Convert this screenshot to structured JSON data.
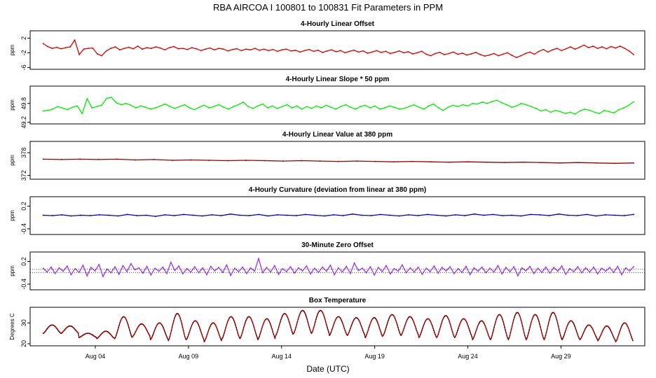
{
  "header": {
    "title": "RBA   AIRCOA I   100801 to 100831   Fit Parameters in PPM"
  },
  "x_axis": {
    "label": "Date (UTC)",
    "tick_labels": [
      "Aug 04",
      "Aug 09",
      "Aug 14",
      "Aug 19",
      "Aug 24",
      "Aug 29"
    ],
    "tick_days": [
      4,
      9,
      14,
      19,
      24,
      29
    ],
    "range_days": [
      0.5,
      33.5
    ]
  },
  "colors": {
    "offset": "#dd0000",
    "slope": "#00ee00",
    "value": "#990000",
    "curvature": "#0000cc",
    "zero": "#9933ee",
    "temperature": "#8b0000"
  },
  "chart_data": [
    {
      "type": "line",
      "title": "4-Hourly Linear Offset",
      "ylabel": "ppm",
      "yticks": [
        "2",
        "-2",
        "-6"
      ],
      "ylim": [
        -6.5,
        4
      ],
      "x_range": [
        1.2,
        32.9
      ],
      "color": "#dd0000",
      "series": [
        {
          "values": [
            0.5,
            -0.3,
            -0.8,
            -0.5,
            -0.9,
            -0.6,
            -0.4,
            1.5,
            -2.5,
            -1.0,
            -0.8,
            -0.7,
            -2.3,
            -2.8,
            -1.5,
            -0.8,
            -0.4,
            -1.2,
            -0.8,
            -0.5,
            -0.9,
            -0.2,
            -1.0,
            -0.6,
            -0.8,
            -0.4,
            -0.7,
            -1.2,
            -0.6,
            -0.3,
            -0.9,
            -0.8,
            -1.1,
            -0.6,
            -0.9,
            -1.4,
            -1.0,
            -0.7,
            -1.2,
            -0.8,
            -1.0,
            -1.5,
            -1.1,
            -0.9,
            -1.4,
            -1.0,
            -1.2,
            -0.8,
            -1.3,
            -1.0,
            -1.4,
            -1.1,
            -1.6,
            -1.2,
            -1.0,
            -1.5,
            -1.3,
            -1.8,
            -1.4,
            -1.1,
            -1.6,
            -1.3,
            -1.9,
            -1.5,
            -1.2,
            -1.7,
            -1.4,
            -2.0,
            -1.6,
            -1.3,
            -1.8,
            -1.5,
            -2.1,
            -1.8,
            -1.4,
            -1.9,
            -1.6,
            -2.2,
            -1.9,
            -1.5,
            -2.0,
            -1.7,
            -2.3,
            -2.0,
            -1.6,
            -2.4,
            -2.8,
            -2.2,
            -1.9,
            -2.5,
            -2.2,
            -1.8,
            -2.4,
            -2.1,
            -2.6,
            -2.3,
            -1.9,
            -2.5,
            -2.9,
            -2.6,
            -2.2,
            -2.8,
            -2.4,
            -2.0,
            -2.7,
            -3.3,
            -2.8,
            -2.2,
            -1.8,
            -2.4,
            -1.6,
            -1.1,
            -1.8,
            -1.2,
            -0.8,
            -1.4,
            -0.9,
            -0.4,
            -1.0,
            -0.5,
            0.1,
            -0.6,
            -0.2,
            -0.8,
            -0.4,
            -0.9,
            -0.3,
            -0.7,
            -0.2,
            -0.8,
            -1.5,
            -2.5
          ]
        }
      ]
    },
    {
      "type": "line",
      "title": "4-Hourly Linear Slope * 50 ppm",
      "ylabel": "ppm",
      "yticks": [
        "49.8",
        "49.2"
      ],
      "ylim": [
        49.15,
        50.35
      ],
      "x_range": [
        1.2,
        32.9
      ],
      "color": "#00ee00",
      "series": [
        {
          "values": [
            49.56,
            49.58,
            49.62,
            49.7,
            49.65,
            49.6,
            49.68,
            49.72,
            49.48,
            49.95,
            49.66,
            49.7,
            49.74,
            49.96,
            49.99,
            49.82,
            49.76,
            49.8,
            49.74,
            49.66,
            49.72,
            49.68,
            49.62,
            49.66,
            49.72,
            49.78,
            49.7,
            49.64,
            49.7,
            49.76,
            49.66,
            49.6,
            49.68,
            49.74,
            49.66,
            49.7,
            49.76,
            49.68,
            49.62,
            49.7,
            49.76,
            49.84,
            49.7,
            49.64,
            49.72,
            49.78,
            49.66,
            49.72,
            49.64,
            49.7,
            49.76,
            49.66,
            49.72,
            49.62,
            49.7,
            49.64,
            49.72,
            49.66,
            49.74,
            49.68,
            49.62,
            49.7,
            49.76,
            49.68,
            49.62,
            49.7,
            49.74,
            49.66,
            49.72,
            49.62,
            49.66,
            49.72,
            49.68,
            49.62,
            49.64,
            49.7,
            49.76,
            49.68,
            49.62,
            49.72,
            49.78,
            49.66,
            49.58,
            49.68,
            49.74,
            49.7,
            49.76,
            49.72,
            49.8,
            49.78,
            49.84,
            49.8,
            49.86,
            49.9,
            49.82,
            49.76,
            49.68,
            49.72,
            49.8,
            49.76,
            49.7,
            49.64,
            49.56,
            49.6,
            49.52,
            49.58,
            49.54,
            49.48,
            49.52,
            49.46,
            49.56,
            49.62,
            49.58,
            49.52,
            49.48,
            49.58,
            49.54,
            49.5,
            49.6,
            49.66,
            49.74,
            49.85
          ]
        }
      ]
    },
    {
      "type": "line",
      "title": "4-Hourly Linear Value at 380 ppm",
      "ylabel": "ppm",
      "yticks": [
        "378",
        "372"
      ],
      "ylim": [
        371,
        381
      ],
      "x_range": [
        1.2,
        32.9
      ],
      "color": "#990000",
      "series": [
        {
          "values": [
            376.3,
            376.2,
            376.3,
            376.2,
            376.3,
            376.1,
            376.2,
            376.0,
            376.1,
            376.0,
            375.9,
            376.0,
            375.9,
            375.8,
            375.9,
            375.8,
            375.7,
            375.8,
            375.7,
            375.6,
            375.7,
            375.6,
            375.5,
            375.6,
            375.5,
            375.4,
            375.5,
            375.4,
            375.3,
            375.4,
            375.3,
            375.2,
            375.3
          ]
        }
      ]
    },
    {
      "type": "line",
      "title": "4-Hourly Curvature (deviation from linear at 380 ppm)",
      "ylabel": "ppm",
      "yticks": [
        "0.2",
        "-0.4"
      ],
      "ylim": [
        -0.55,
        0.45
      ],
      "x_range": [
        1.2,
        32.9
      ],
      "color": "#0000cc",
      "series": [
        {
          "values": [
            -0.04,
            -0.05,
            -0.03,
            -0.06,
            -0.04,
            -0.05,
            -0.03,
            -0.04,
            -0.06,
            -0.02,
            -0.05,
            -0.04,
            -0.07,
            -0.03,
            -0.05,
            -0.02,
            -0.04,
            -0.06,
            -0.03,
            -0.05,
            -0.01,
            -0.04,
            -0.05,
            -0.02,
            -0.06,
            -0.03,
            -0.04,
            -0.05,
            -0.02,
            -0.04,
            -0.06,
            -0.03,
            -0.05,
            -0.01,
            -0.04,
            -0.05,
            -0.02,
            -0.04,
            -0.06,
            -0.03,
            -0.05,
            -0.02,
            -0.04,
            -0.06,
            -0.03,
            -0.05,
            -0.01,
            -0.04,
            -0.02,
            -0.05,
            -0.04,
            -0.06,
            -0.02,
            -0.03,
            -0.05,
            -0.01,
            -0.04,
            -0.05,
            -0.02,
            -0.06,
            -0.03,
            -0.04,
            -0.05,
            -0.02
          ]
        }
      ]
    },
    {
      "type": "line",
      "title": "30-Minute Zero Offset",
      "ylabel": "ppm",
      "yticks": [
        "0.2",
        "-0.4"
      ],
      "ylim": [
        -0.55,
        0.45
      ],
      "x_range": [
        1.2,
        32.9
      ],
      "reference_lines": [
        0.0,
        -0.1
      ],
      "color": "#9933ee",
      "series": [
        {
          "values": [
            0.02,
            -0.08,
            0.05,
            -0.12,
            0.03,
            -0.06,
            0.08,
            -0.15,
            0.01,
            -0.09,
            0.1,
            -0.18,
            0.04,
            -0.05,
            0.12,
            -0.2,
            0.0,
            -0.1,
            0.06,
            -0.14,
            0.09,
            -0.07,
            0.14,
            -0.02,
            0.03,
            -0.11,
            0.07,
            -0.16,
            0.02,
            -0.06,
            0.05,
            -0.12,
            0.18,
            -0.04,
            0.08,
            -0.13,
            0.01,
            -0.08,
            0.06,
            -0.1,
            0.03,
            -0.15,
            0.07,
            -0.05,
            0.04,
            -0.09,
            0.11,
            -0.17,
            0.02,
            -0.07,
            0.05,
            -0.12,
            0.03,
            -0.06,
            0.28,
            -0.1,
            0.04,
            -0.08,
            0.09,
            -0.14,
            0.01,
            -0.07,
            0.06,
            -0.11,
            0.03,
            -0.05,
            0.08,
            -0.13,
            0.02,
            -0.09,
            0.05,
            -0.06,
            0.1,
            -0.15,
            0.03,
            -0.08,
            0.07,
            -0.12,
            0.16,
            -0.04,
            0.02,
            -0.1,
            0.06,
            -0.16,
            0.04,
            -0.07,
            0.09,
            -0.13,
            0.01,
            -0.06,
            0.11,
            -0.1,
            0.03,
            -0.08,
            0.05,
            -0.14,
            0.02,
            -0.07,
            0.08,
            -0.11,
            0.04,
            -0.05,
            0.06,
            -0.12,
            0.01,
            -0.09,
            0.07,
            -0.15,
            0.03,
            -0.06,
            0.05,
            -0.1,
            0.02,
            -0.08,
            0.09,
            -0.13,
            0.04,
            -0.07,
            0.06,
            -0.18,
            0.03,
            -0.05,
            0.07,
            -0.12,
            0.02,
            -0.09,
            0.05,
            -0.11,
            0.04,
            -0.06,
            0.08,
            -0.14,
            0.01,
            -0.07,
            0.06,
            -0.1,
            0.03,
            -0.08,
            0.05,
            -0.13,
            0.02,
            -0.06,
            0.04,
            -0.09,
            0.07,
            -0.15,
            0.03,
            -0.05,
            0.06
          ]
        }
      ]
    },
    {
      "type": "line",
      "title": "Box Temperature",
      "ylabel": "Degrees C",
      "yticks": [
        "20",
        "30"
      ],
      "ylim": [
        19,
        37.5
      ],
      "x_range": [
        1.2,
        32.9
      ],
      "color": "#8b0000",
      "daily_peaks": [
        29,
        28.5,
        25,
        26,
        33,
        29.5,
        30,
        34.5,
        31,
        30,
        33,
        33,
        32,
        34.5,
        36,
        36,
        33,
        32.5,
        32.5,
        34,
        33,
        32,
        33.5,
        32,
        31,
        34,
        35,
        34,
        35,
        31,
        29,
        28.5,
        30
      ],
      "daily_troughs": [
        25,
        25,
        23,
        22.5,
        22.5,
        23.5,
        22,
        21.5,
        22,
        21,
        22.5,
        22.5,
        22,
        24,
        25,
        25,
        24,
        24,
        23,
        24,
        24,
        23,
        23,
        23,
        22,
        22,
        22,
        22,
        22,
        22,
        22,
        21.5,
        21
      ]
    }
  ]
}
